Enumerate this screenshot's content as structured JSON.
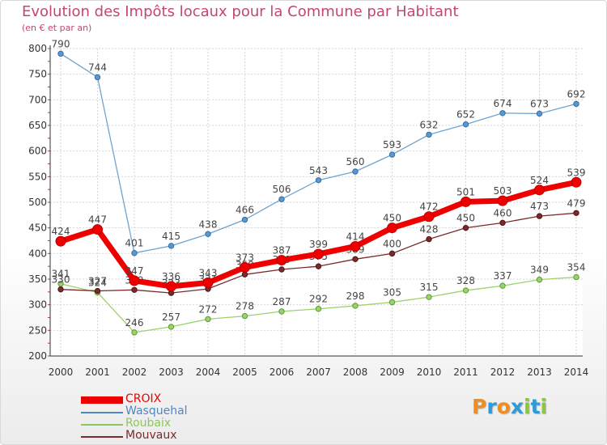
{
  "chart_data": {
    "type": "line",
    "title": "Evolution des Impôts locaux pour la Commune par Habitant",
    "subtitle": "(en € et par an)",
    "x": [
      "2000",
      "2001",
      "2002",
      "2003",
      "2004",
      "2005",
      "2006",
      "2007",
      "2008",
      "2009",
      "2010",
      "2011",
      "2012",
      "2013",
      "2014"
    ],
    "ylim": [
      200,
      800
    ],
    "yticks": [
      "200",
      "250",
      "300",
      "350",
      "400",
      "450",
      "500",
      "550",
      "600",
      "650",
      "700",
      "750",
      "800"
    ],
    "grid": true,
    "legend_position": "bottom-left",
    "series": [
      {
        "name": "Wasquehal",
        "color": "#6fa3cf",
        "values": [
          790,
          744,
          401,
          415,
          438,
          466,
          506,
          543,
          560,
          593,
          632,
          652,
          674,
          673,
          692
        ]
      },
      {
        "name": "Roubaix",
        "color": "#9ad26b",
        "values": [
          341,
          324,
          246,
          257,
          272,
          278,
          287,
          292,
          298,
          305,
          315,
          328,
          337,
          349,
          354
        ]
      },
      {
        "name": "Mouvaux",
        "color": "#7a2b2b",
        "values": [
          330,
          327,
          329,
          323,
          331,
          359,
          369,
          375,
          389,
          400,
          428,
          450,
          460,
          473,
          479
        ]
      },
      {
        "name": "CROIX",
        "color": "#ee0000",
        "values": [
          424,
          447,
          347,
          336,
          343,
          373,
          387,
          399,
          414,
          450,
          472,
          501,
          503,
          524,
          539
        ]
      }
    ]
  },
  "legend": {
    "items": [
      {
        "label": "CROIX",
        "color": "#ee0000",
        "thick": true
      },
      {
        "label": "Wasquehal",
        "color": "#4f86c1",
        "thick": false
      },
      {
        "label": "Roubaix",
        "color": "#8cc75a",
        "thick": false
      },
      {
        "label": "Mouvaux",
        "color": "#7a2b2b",
        "thick": false
      }
    ]
  },
  "logo": {
    "letters": [
      {
        "ch": "P",
        "color": "#f28c1b"
      },
      {
        "ch": "r",
        "color": "#2e9ad6"
      },
      {
        "ch": "o",
        "color": "#f28c1b"
      },
      {
        "ch": "x",
        "color": "#2e9ad6"
      },
      {
        "ch": "i",
        "color": "#8cc63f"
      },
      {
        "ch": "t",
        "color": "#2e9ad6"
      },
      {
        "ch": "i",
        "color": "#8cc63f"
      }
    ]
  }
}
